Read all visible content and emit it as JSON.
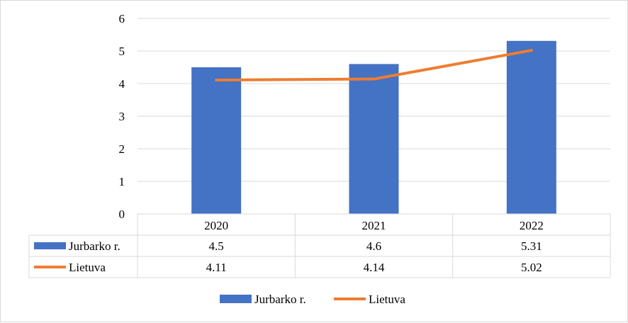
{
  "chart_data": {
    "type": "bar",
    "categories": [
      "2020",
      "2021",
      "2022"
    ],
    "series": [
      {
        "name": "Jurbarko r.",
        "type": "bar",
        "color": "#4472c4",
        "values": [
          4.5,
          4.6,
          5.31
        ],
        "display": [
          "4.5",
          "4.6",
          "5.31"
        ]
      },
      {
        "name": "Lietuva",
        "type": "line",
        "color": "#ed7d31",
        "values": [
          4.11,
          4.14,
          5.02
        ],
        "display": [
          "4.11",
          "4.14",
          "5.02"
        ]
      }
    ],
    "ylim": [
      0,
      6
    ],
    "yticks": [
      "0",
      "1",
      "2",
      "3",
      "4",
      "5",
      "6"
    ],
    "grid": true,
    "data_table": true,
    "legend": "bottom"
  }
}
